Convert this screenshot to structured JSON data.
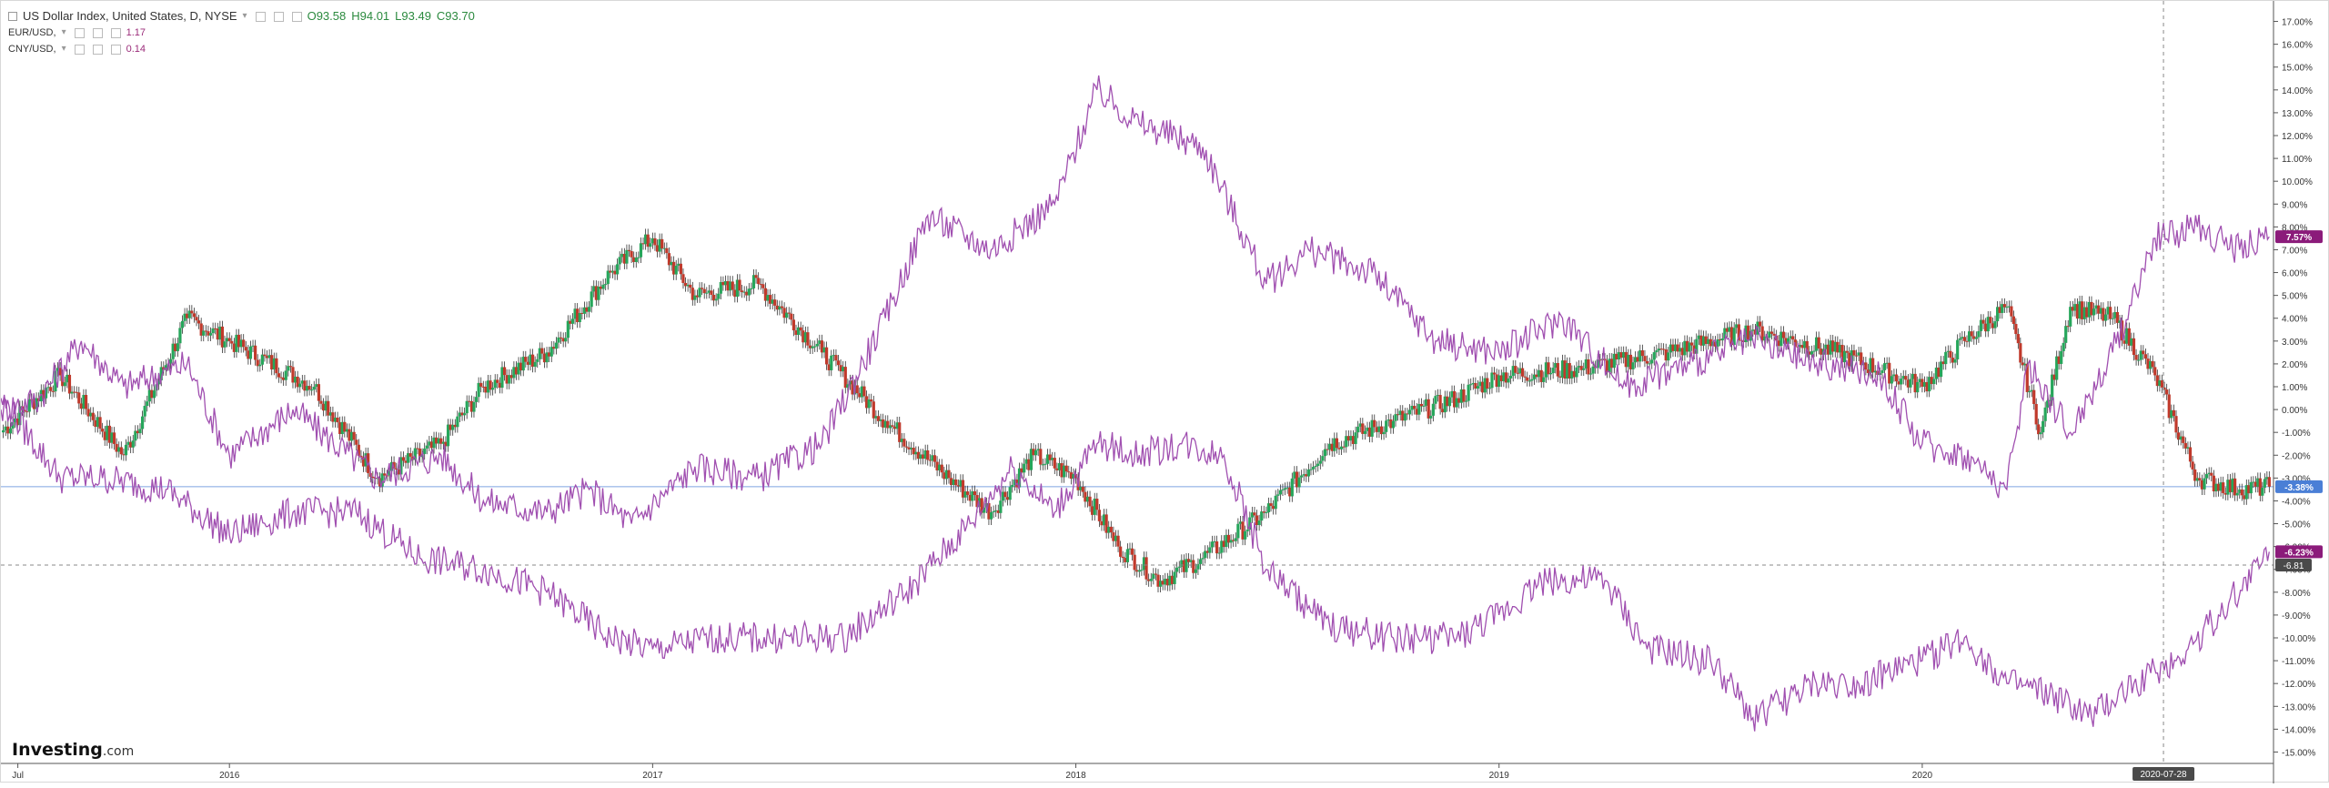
{
  "legend": {
    "main": {
      "title": "US Dollar Index, United States, D, NYSE",
      "O": "O93.58",
      "H": "H94.01",
      "L": "L93.49",
      "C": "C93.70"
    },
    "eur": {
      "name": "EUR/USD,",
      "value": "1.17"
    },
    "cny": {
      "name": "CNY/USD,",
      "value": "0.14"
    }
  },
  "logo": {
    "main": "Investing",
    "suffix": ".com"
  },
  "colors": {
    "candle_up": "#26a65b",
    "candle_down": "#c0392b",
    "compare": "#a04fb0",
    "badge_purple": "#8b1b7a",
    "badge_blue": "#4a7fd6",
    "badge_dark": "#4a4a4a",
    "baseline": "#4a7fd6"
  },
  "chart_data": {
    "type": "line",
    "title": "US Dollar Index, United States, D, NYSE",
    "xlabel": "",
    "ylabel": "",
    "y_tick_labels": [
      "17.00%",
      "16.00%",
      "15.00%",
      "14.00%",
      "13.00%",
      "12.00%",
      "11.00%",
      "10.00%",
      "9.00%",
      "8.00%",
      "7.00%",
      "6.00%",
      "5.00%",
      "4.00%",
      "3.00%",
      "2.00%",
      "1.00%",
      "0.00%",
      "-1.00%",
      "-2.00%",
      "-3.00%",
      "-4.00%",
      "-5.00%",
      "-6.00%",
      "-7.00%",
      "-8.00%",
      "-9.00%",
      "-10.00%",
      "-11.00%",
      "-12.00%",
      "-13.00%",
      "-14.00%",
      "-15.00%"
    ],
    "y_ticks": [
      17,
      16,
      15,
      14,
      13,
      12,
      11,
      10,
      9,
      8,
      7,
      6,
      5,
      4,
      3,
      2,
      1,
      0,
      -1,
      -2,
      -3,
      -4,
      -5,
      -6,
      -7,
      -8,
      -9,
      -10,
      -11,
      -12,
      -13,
      -14,
      -15
    ],
    "ylim": [
      -15.5,
      17.5
    ],
    "x_range": [
      2015.46,
      2020.83
    ],
    "x_ticks": [
      {
        "label": "Jul",
        "x": 2015.5
      },
      {
        "label": "2016",
        "x": 2016.0
      },
      {
        "label": "2017",
        "x": 2017.0
      },
      {
        "label": "2018",
        "x": 2018.0
      },
      {
        "label": "2019",
        "x": 2019.0
      },
      {
        "label": "2020",
        "x": 2020.0
      }
    ],
    "crosshair": {
      "x": 2020.57,
      "x_label": "2020-07-28",
      "y": -6.81,
      "y_label": "-6.81"
    },
    "last_value_labels": [
      {
        "value": 7.57,
        "label": "7.57%",
        "color": "#8b1b7a"
      },
      {
        "value": -3.38,
        "label": "-3.38%",
        "color": "#4a7fd6"
      },
      {
        "value": -6.23,
        "label": "-6.23%",
        "color": "#8b1b7a"
      }
    ],
    "baseline_value": -3.38,
    "series": [
      {
        "name": "US Dollar Index",
        "style": "candles",
        "x": [
          2015.46,
          2015.6,
          2015.75,
          2015.9,
          2016.0,
          2016.2,
          2016.35,
          2016.5,
          2016.6,
          2016.75,
          2016.9,
          2017.0,
          2017.1,
          2017.25,
          2017.4,
          2017.55,
          2017.7,
          2017.8,
          2017.9,
          2018.0,
          2018.1,
          2018.2,
          2018.3,
          2018.45,
          2018.6,
          2018.75,
          2018.9,
          2019.0,
          2019.2,
          2019.4,
          2019.6,
          2019.8,
          2020.0,
          2020.1,
          2020.2,
          2020.28,
          2020.35,
          2020.45,
          2020.55,
          2020.65,
          2020.75,
          2020.82
        ],
        "values": [
          -1,
          1.5,
          -2,
          4,
          3,
          1,
          -3,
          -1.5,
          1,
          2.5,
          6,
          7.5,
          5,
          5.5,
          2.5,
          -0.5,
          -3,
          -4.5,
          -2,
          -3,
          -6,
          -7.5,
          -6.5,
          -4.5,
          -1.5,
          -0.5,
          0.5,
          1.5,
          1.8,
          2.5,
          3.5,
          2.5,
          1,
          3,
          4.5,
          -1,
          4.5,
          4,
          1.5,
          -3,
          -3.5,
          -3.38
        ]
      },
      {
        "name": "EUR/USD",
        "style": "line",
        "x": [
          2015.46,
          2015.55,
          2015.65,
          2015.75,
          2015.9,
          2016.0,
          2016.15,
          2016.35,
          2016.5,
          2016.6,
          2016.75,
          2016.85,
          2016.95,
          2017.1,
          2017.25,
          2017.4,
          2017.55,
          2017.65,
          2017.8,
          2017.95,
          2018.05,
          2018.15,
          2018.3,
          2018.45,
          2018.55,
          2018.7,
          2018.85,
          2019.0,
          2019.15,
          2019.3,
          2019.45,
          2019.6,
          2019.75,
          2019.9,
          2020.0,
          2020.1,
          2020.2,
          2020.25,
          2020.35,
          2020.45,
          2020.55,
          2020.65,
          2020.75,
          2020.82
        ],
        "values": [
          0,
          0.5,
          3,
          1,
          2,
          -2,
          0,
          -3,
          -2,
          -4,
          -4.5,
          -3.5,
          -5,
          -2.5,
          -3,
          -1.5,
          4,
          8.5,
          7,
          9,
          14,
          12.5,
          11.5,
          5.5,
          7,
          6,
          3,
          2.5,
          4,
          1,
          2,
          3,
          2,
          1.5,
          -1.5,
          -2,
          -3.5,
          2,
          -1,
          2.5,
          7.5,
          8,
          7,
          7.57
        ]
      },
      {
        "name": "CNY/USD",
        "style": "line",
        "x": [
          2015.46,
          2015.6,
          2015.7,
          2015.85,
          2016.0,
          2016.15,
          2016.3,
          2016.45,
          2016.6,
          2016.75,
          2016.9,
          2017.0,
          2017.15,
          2017.3,
          2017.45,
          2017.6,
          2017.75,
          2017.85,
          2017.95,
          2018.05,
          2018.15,
          2018.25,
          2018.35,
          2018.45,
          2018.6,
          2018.75,
          2018.9,
          2019.0,
          2019.1,
          2019.25,
          2019.35,
          2019.5,
          2019.6,
          2019.75,
          2019.85,
          2020.0,
          2020.1,
          2020.2,
          2020.3,
          2020.4,
          2020.5,
          2020.6,
          2020.7,
          2020.82
        ],
        "values": [
          0.5,
          -3,
          -3,
          -3.5,
          -5.5,
          -4.5,
          -4.5,
          -6.5,
          -7,
          -8,
          -10,
          -10.5,
          -10,
          -10,
          -10,
          -8,
          -5,
          -2.5,
          -4.5,
          -1.5,
          -2,
          -1.5,
          -2,
          -7,
          -9.5,
          -10,
          -10,
          -9,
          -7.5,
          -7.5,
          -10.5,
          -11,
          -13.5,
          -12,
          -12,
          -11,
          -10,
          -12,
          -12.5,
          -13.5,
          -12,
          -11,
          -9,
          -6.23
        ]
      }
    ]
  }
}
